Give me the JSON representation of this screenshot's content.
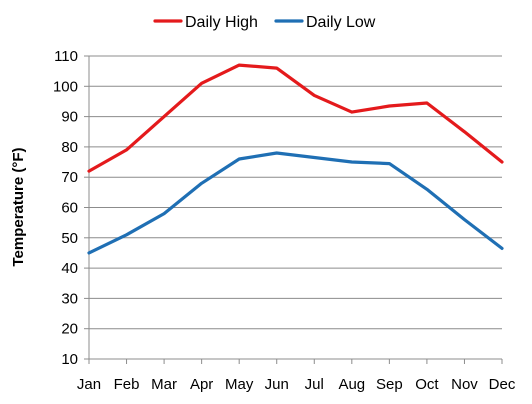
{
  "chart_data": {
    "type": "line",
    "title": "",
    "xlabel": "",
    "ylabel": "Temperature (°F)",
    "categories": [
      "Jan",
      "Feb",
      "Mar",
      "Apr",
      "May",
      "Jun",
      "Jul",
      "Aug",
      "Sep",
      "Oct",
      "Nov",
      "Dec"
    ],
    "ylim": [
      10,
      110
    ],
    "yticks": [
      10,
      20,
      30,
      40,
      50,
      60,
      70,
      80,
      90,
      100,
      110
    ],
    "grid": true,
    "legend_position": "top",
    "series": [
      {
        "name": "Daily High",
        "color": "#e41a1c",
        "values": [
          72,
          79,
          90,
          101,
          107,
          106,
          97,
          91.5,
          93.5,
          94.5,
          85,
          75
        ]
      },
      {
        "name": "Daily Low",
        "color": "#1f6fb4",
        "values": [
          45,
          51,
          58,
          68,
          76,
          78,
          76.5,
          75,
          74.5,
          66,
          56,
          46.5
        ]
      }
    ]
  }
}
